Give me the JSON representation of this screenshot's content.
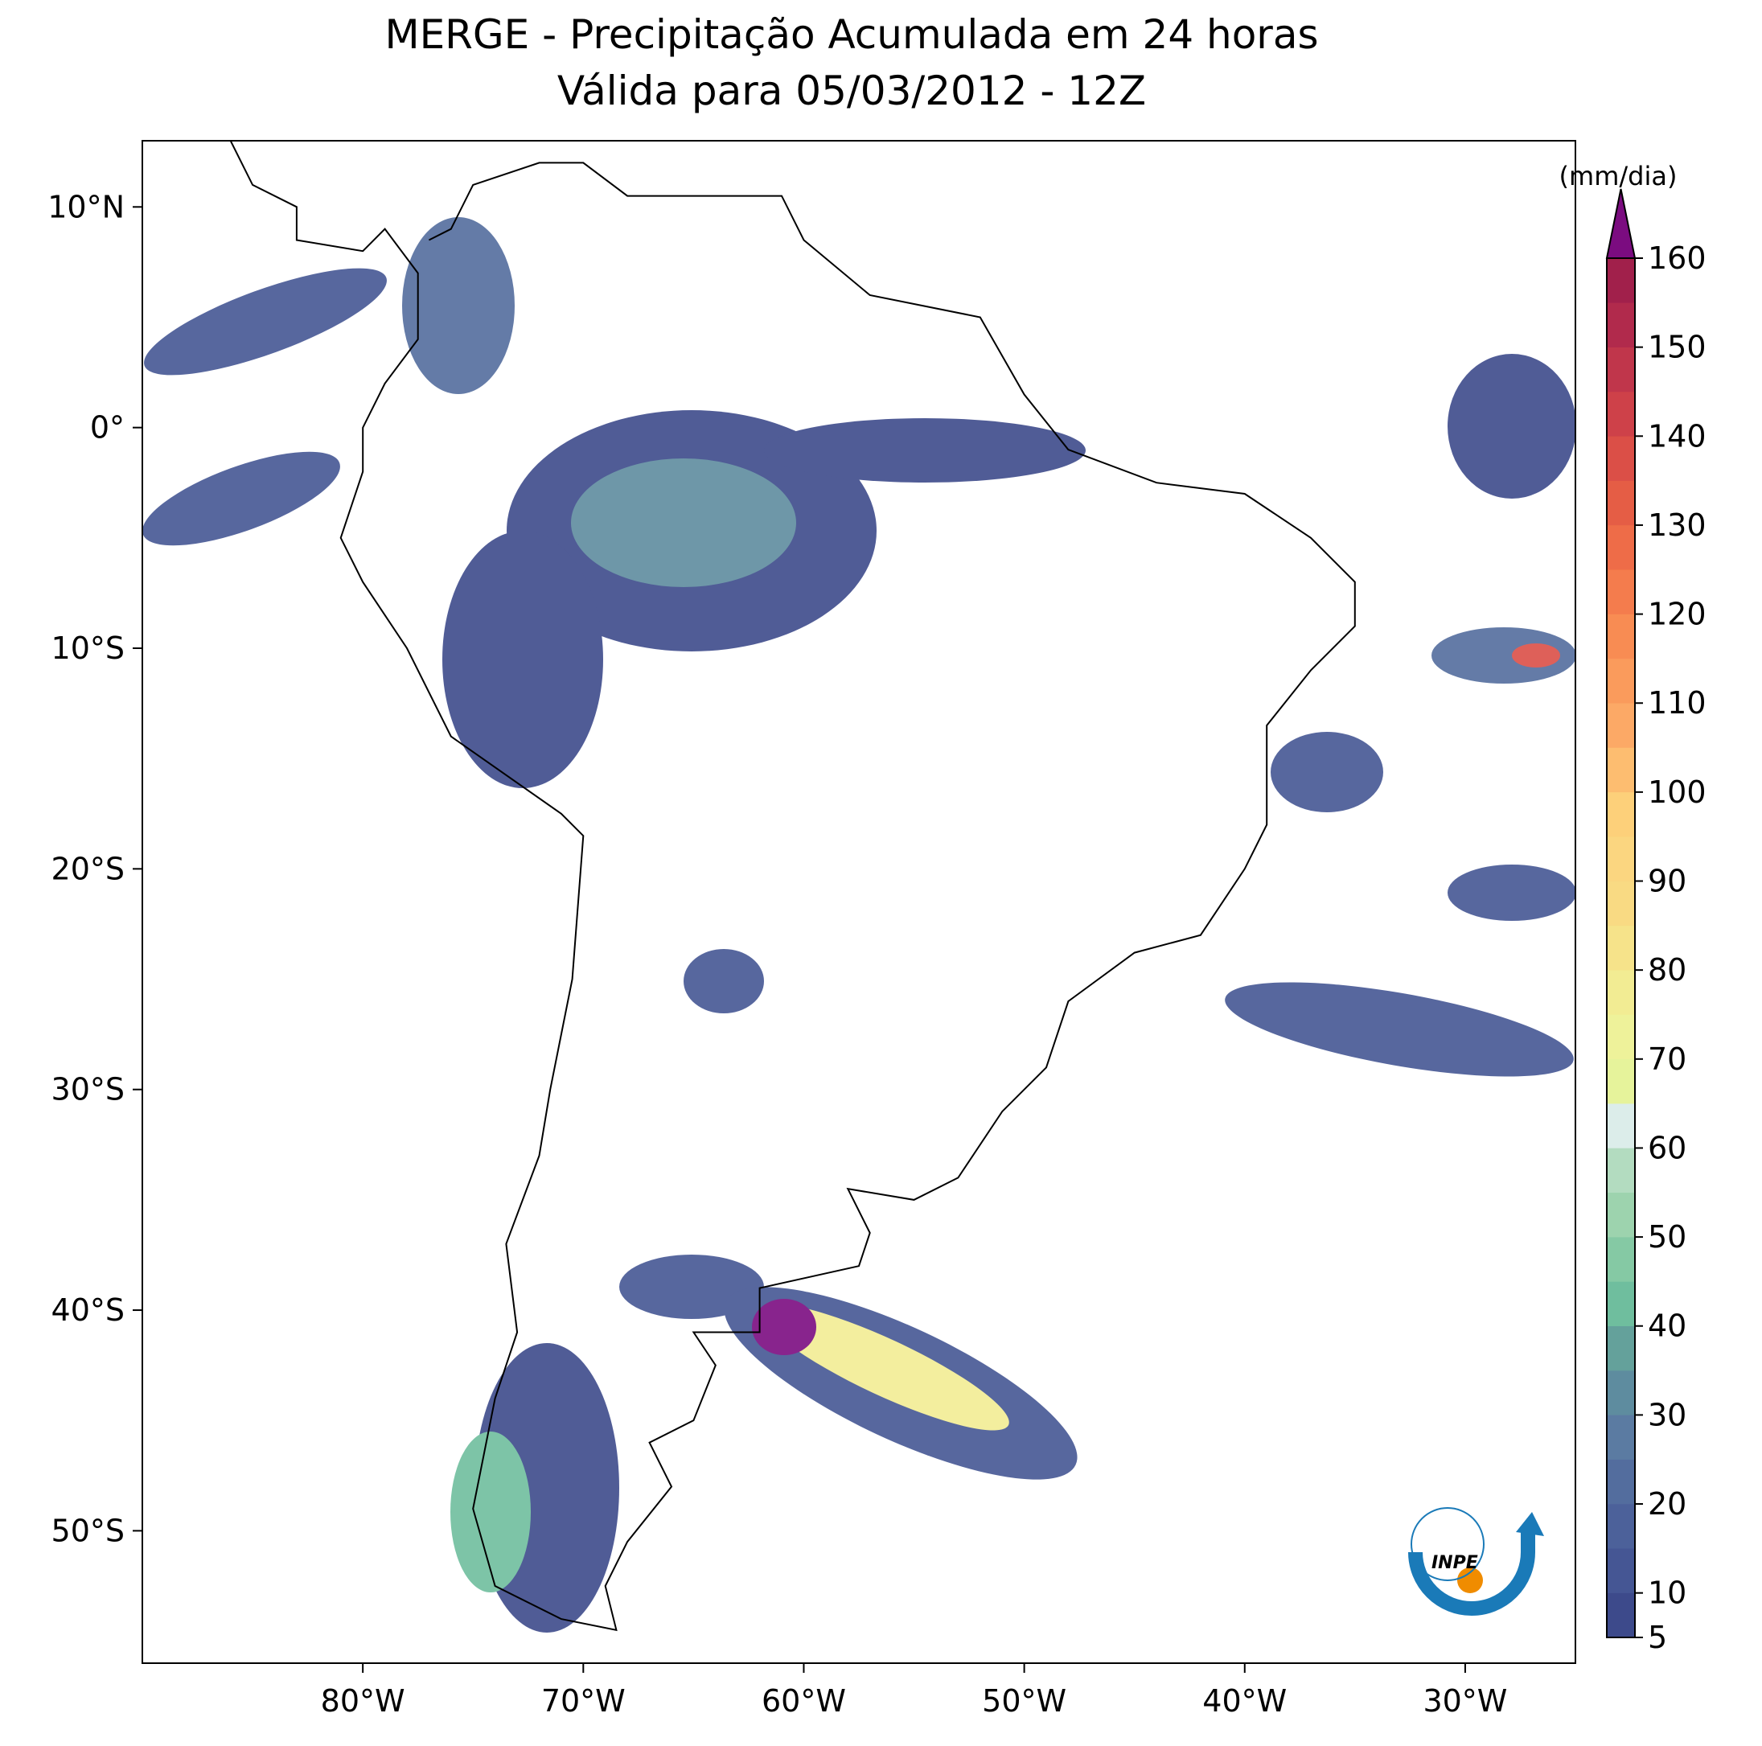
{
  "chart_data": {
    "type": "map",
    "title": "MERGE - Precipitação Acumulada em 24 horas",
    "subtitle": "Válida para 05/03/2012 - 12Z",
    "xlim": [
      -90,
      -25
    ],
    "ylim": [
      -56,
      13
    ],
    "xticks": [
      {
        "value": -80,
        "label": "80°W"
      },
      {
        "value": -70,
        "label": "70°W"
      },
      {
        "value": -60,
        "label": "60°W"
      },
      {
        "value": -50,
        "label": "50°W"
      },
      {
        "value": -40,
        "label": "40°W"
      },
      {
        "value": -30,
        "label": "30°W"
      }
    ],
    "yticks": [
      {
        "value": 10,
        "label": "10°N"
      },
      {
        "value": 0,
        "label": "0°"
      },
      {
        "value": -10,
        "label": "10°S"
      },
      {
        "value": -20,
        "label": "20°S"
      },
      {
        "value": -30,
        "label": "30°S"
      },
      {
        "value": -40,
        "label": "40°S"
      },
      {
        "value": -50,
        "label": "50°S"
      }
    ],
    "colorbar": {
      "label": "(mm/dia)",
      "lim": [
        5,
        160
      ],
      "ticks": [
        5,
        10,
        20,
        30,
        40,
        50,
        60,
        70,
        80,
        90,
        100,
        110,
        120,
        130,
        140,
        150,
        160
      ],
      "levels": [
        5,
        10,
        15,
        20,
        25,
        30,
        35,
        40,
        45,
        50,
        55,
        60,
        65,
        70,
        75,
        80,
        85,
        90,
        95,
        100,
        105,
        110,
        115,
        120,
        125,
        130,
        135,
        140,
        145,
        150,
        155,
        160
      ],
      "colors": [
        "#3d4a8b",
        "#455694",
        "#4c619a",
        "#536d9e",
        "#5b7ba2",
        "#5e8c9f",
        "#64a19b",
        "#6fbe9e",
        "#85c9a4",
        "#9dd3ae",
        "#b3dcc0",
        "#dcedea",
        "#e6f39b",
        "#eef29a",
        "#f2ec93",
        "#f6e38a",
        "#f9da83",
        "#fbd680",
        "#fdd07a",
        "#fdbd70",
        "#fca966",
        "#fa9b5c",
        "#f88c53",
        "#f47c4d",
        "#ee6c48",
        "#e55d45",
        "#db4f47",
        "#ce4149",
        "#c0364b",
        "#b12a4c",
        "#a1204b"
      ],
      "extend_color": "#7b0c80"
    },
    "logo_text": "INPE"
  }
}
